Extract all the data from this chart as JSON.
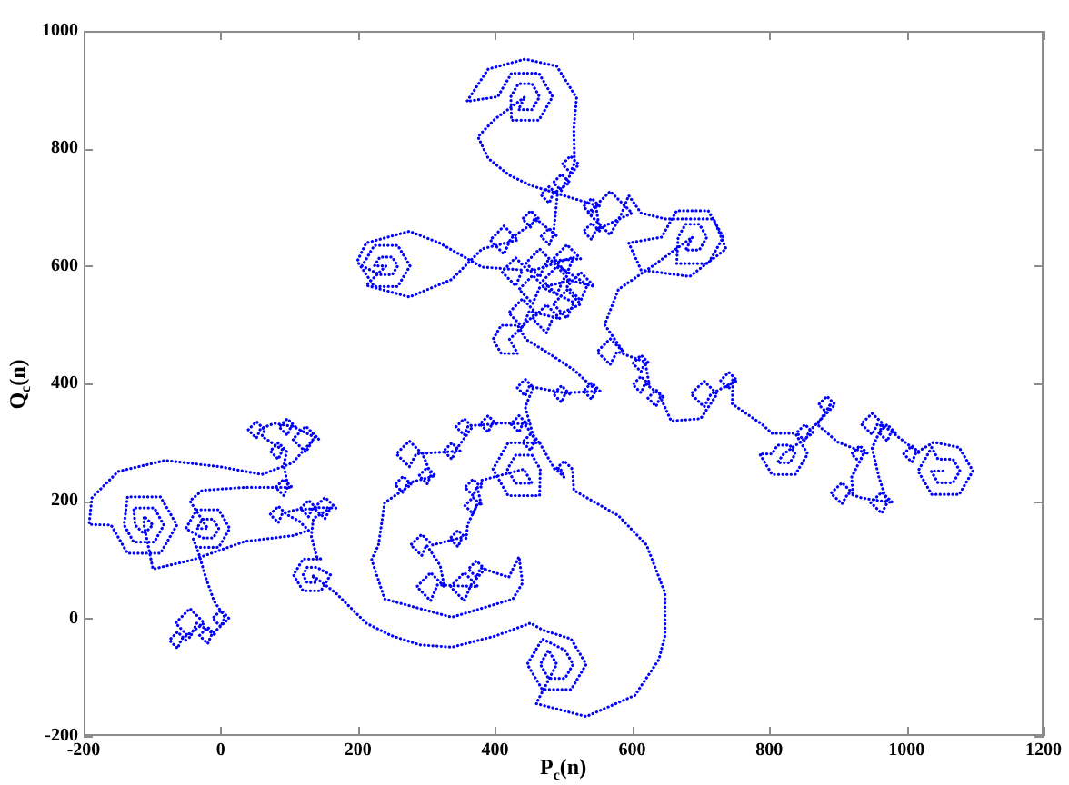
{
  "chart_data": {
    "type": "line",
    "xlabel": "P$_{c}$(n)",
    "ylabel": "Q$_{c}$(n)",
    "color": "#0000ff",
    "line_style": "dotted",
    "marker": "none",
    "grid": false,
    "legend": false,
    "xlim": [
      -200,
      1200
    ],
    "ylim": [
      -200,
      1000
    ],
    "xticks": [
      -200,
      0,
      200,
      400,
      600,
      800,
      1000,
      1200
    ],
    "yticks": [
      -200,
      0,
      200,
      400,
      600,
      800,
      1000
    ],
    "x": [
      -51,
      -63,
      -75,
      -63,
      -57,
      -24,
      -45,
      -66,
      -45,
      -35,
      -7,
      -19,
      -31,
      -19,
      -13,
      12,
      0,
      -12,
      0,
      6,
      -10,
      -22,
      -32,
      -40,
      -35,
      -3,
      13,
      -3,
      -35,
      -51,
      -27,
      -11,
      -3,
      -11,
      -27,
      -35,
      -19,
      -45,
      -27,
      35,
      104,
      92,
      80,
      92,
      98,
      92,
      96,
      84,
      72,
      84,
      90,
      60,
      64,
      52,
      40,
      52,
      58,
      78,
      109,
      97,
      85,
      97,
      103,
      143,
      124,
      105,
      124,
      135,
      105,
      60,
      0,
      -81,
      -150,
      -188,
      -192,
      -160,
      -136,
      -88,
      -64,
      -88,
      -136,
      -141,
      -127,
      -97,
      -83,
      -97,
      -127,
      -125,
      -112,
      -99,
      -112,
      -112,
      -99,
      -40,
      35,
      106,
      128,
      115,
      96,
      84,
      72,
      84,
      90,
      110,
      140,
      128,
      116,
      128,
      134,
      168,
      152,
      136,
      152,
      160,
      135,
      132,
      140,
      146,
      120,
      106,
      120,
      146,
      160,
      140,
      126,
      120,
      126,
      140,
      133,
      168,
      212,
      248,
      290,
      337,
      400,
      452,
      470,
      511,
      533,
      511,
      469,
      447,
      469,
      502,
      514,
      502,
      478,
      466,
      478,
      490,
      460,
      533,
      604,
      639,
      648,
      648,
      621,
      580,
      515,
      513,
      501,
      489,
      501,
      495,
      487,
      465,
      419,
      397,
      419,
      465,
      466,
      454,
      430,
      418,
      430,
      454,
      442,
      380,
      380,
      368,
      356,
      368,
      374,
      380,
      368,
      356,
      368,
      374,
      360,
      358,
      346,
      334,
      346,
      352,
      309,
      293,
      277,
      293,
      300,
      320,
      326,
      306,
      286,
      306,
      316,
      375,
      355,
      335,
      355,
      365,
      385,
      373,
      361,
      373,
      379,
      420,
      435,
      440,
      426,
      337,
      239,
      220,
      230,
      239,
      278,
      266,
      254,
      266,
      272,
      313,
      301,
      289,
      301,
      307,
      294,
      275,
      256,
      275,
      285,
      349,
      337,
      325,
      337,
      343,
      367,
      355,
      343,
      355,
      361,
      402,
      390,
      378,
      390,
      396,
      447,
      435,
      423,
      435,
      441,
      464,
      452,
      440,
      452,
      458,
      444,
      456,
      444,
      432,
      444,
      450,
      509,
      497,
      485,
      497,
      503,
      553,
      541,
      529,
      541,
      547,
      515,
      480,
      445,
      433,
      409,
      397,
      409,
      433,
      421,
      460,
      440,
      420,
      440,
      450,
      495,
      475,
      455,
      475,
      485,
      525,
      505,
      485,
      505,
      515,
      475,
      455,
      435,
      455,
      465,
      510,
      490,
      470,
      490,
      500,
      545,
      525,
      505,
      525,
      535,
      485,
      465,
      445,
      465,
      475,
      525,
      505,
      485,
      505,
      515,
      450,
      430,
      410,
      430,
      440,
      381,
      319,
      275,
      212,
      199,
      224,
      258,
      276,
      258,
      224,
      206,
      232,
      250,
      258,
      250,
      232,
      224,
      241,
      212,
      275,
      337,
      381,
      433,
      413,
      393,
      413,
      423,
      464,
      452,
      440,
      452,
      458,
      491,
      479,
      467,
      479,
      485,
      491,
      479,
      467,
      479,
      485,
      509,
      497,
      485,
      497,
      503,
      522,
      510,
      498,
      510,
      516,
      515,
      519,
      490,
      444,
      390,
      359,
      404,
      424,
      464,
      484,
      464,
      424,
      423,
      434,
      454,
      465,
      454,
      434,
      444,
      400,
      375,
      390,
      420,
      452,
      553,
      541,
      529,
      541,
      547,
      553,
      541,
      529,
      541,
      547,
      600,
      568,
      536,
      568,
      585,
      595,
      613,
      648,
      719,
      737,
      684,
      613,
      595,
      643,
      665,
      711,
      733,
      711,
      665,
      667,
      678,
      698,
      709,
      698,
      678,
      688,
      630,
      580,
      560,
      587,
      568,
      549,
      568,
      578,
      625,
      613,
      601,
      613,
      619,
      625,
      613,
      601,
      613,
      619,
      647,
      635,
      623,
      635,
      641,
      657,
      700,
      724,
      705,
      686,
      705,
      715,
      753,
      741,
      729,
      741,
      747,
      746,
      790,
      804,
      838,
      856,
      838,
      804,
      786,
      804,
      812,
      830,
      838,
      830,
      812,
      821,
      864,
      852,
      840,
      852,
      858,
      896,
      884,
      872,
      884,
      890,
      870,
      900,
      944,
      932,
      920,
      932,
      938,
      920,
      922,
      906,
      890,
      906,
      915,
      935,
      980,
      964,
      948,
      964,
      972,
      960,
      950,
      966,
      950,
      934,
      950,
      958,
      984,
      972,
      960,
      972,
      978,
      1020,
      1008,
      996,
      1008,
      1014,
      1040,
      1077,
      1097,
      1077,
      1037,
      1017,
      1037,
      1046,
      1068,
      1078,
      1068,
      1046,
      1036,
      1057
    ],
    "values": [
      -37,
      -23,
      -37,
      -51,
      -35,
      -8,
      17,
      -8,
      -33,
      -8,
      -29,
      -15,
      -29,
      -43,
      -27,
      0,
      14,
      0,
      -14,
      2,
      30,
      70,
      110,
      135,
      121,
      121,
      153,
      185,
      185,
      153,
      137,
      137,
      153,
      169,
      169,
      153,
      153,
      200,
      218,
      223,
      223,
      237,
      223,
      209,
      225,
      260,
      285,
      299,
      285,
      271,
      287,
      310,
      321,
      335,
      321,
      307,
      323,
      332,
      326,
      340,
      326,
      312,
      328,
      305,
      327,
      305,
      283,
      305,
      265,
      245,
      258,
      269,
      250,
      205,
      160,
      159,
      111,
      111,
      159,
      207,
      207,
      159,
      130,
      130,
      159,
      188,
      188,
      159,
      144,
      159,
      174,
      159,
      84,
      100,
      131,
      141,
      150,
      165,
      177,
      191,
      177,
      163,
      179,
      185,
      187,
      201,
      187,
      173,
      189,
      188,
      206,
      188,
      170,
      188,
      170,
      140,
      105,
      101,
      101,
      74,
      47,
      47,
      74,
      87,
      87,
      74,
      61,
      61,
      74,
      43,
      -8,
      -29,
      -45,
      -49,
      -30,
      -8,
      -20,
      -35,
      -78,
      -121,
      -121,
      -78,
      -35,
      -54,
      -78,
      -102,
      -102,
      -78,
      -54,
      -78,
      -145,
      -167,
      -131,
      -70,
      -29,
      43,
      125,
      175,
      218,
      254,
      268,
      254,
      240,
      256,
      254,
      299,
      299,
      254,
      209,
      209,
      254,
      278,
      278,
      254,
      230,
      230,
      254,
      235,
      223,
      237,
      223,
      209,
      225,
      192,
      206,
      192,
      178,
      194,
      160,
      136,
      150,
      136,
      122,
      138,
      125,
      143,
      125,
      107,
      125,
      90,
      54,
      78,
      54,
      30,
      57,
      54,
      78,
      54,
      30,
      57,
      84,
      98,
      84,
      70,
      86,
      70,
      105,
      60,
      33,
      2,
      33,
      100,
      125,
      197,
      228,
      242,
      228,
      214,
      230,
      243,
      257,
      243,
      229,
      245,
      280,
      302,
      280,
      258,
      280,
      285,
      299,
      285,
      271,
      287,
      326,
      340,
      326,
      312,
      328,
      331,
      345,
      331,
      317,
      333,
      331,
      345,
      331,
      317,
      333,
      300,
      314,
      300,
      286,
      302,
      360,
      393,
      407,
      393,
      379,
      395,
      382,
      396,
      382,
      368,
      384,
      387,
      401,
      387,
      373,
      389,
      423,
      450,
      475,
      499,
      499,
      475,
      451,
      451,
      475,
      520,
      544,
      520,
      496,
      523,
      510,
      534,
      510,
      486,
      513,
      535,
      559,
      535,
      511,
      538,
      560,
      584,
      560,
      536,
      563,
      575,
      599,
      575,
      551,
      578,
      565,
      589,
      565,
      541,
      568,
      605,
      629,
      605,
      581,
      608,
      612,
      636,
      612,
      588,
      615,
      590,
      614,
      590,
      566,
      593,
      598,
      639,
      659,
      639,
      608,
      565,
      565,
      600,
      635,
      635,
      600,
      585,
      585,
      600,
      615,
      615,
      600,
      600,
      567,
      547,
      577,
      629,
      644,
      668,
      644,
      620,
      647,
      680,
      694,
      680,
      666,
      682,
      650,
      664,
      650,
      636,
      652,
      721,
      735,
      721,
      707,
      723,
      742,
      756,
      742,
      728,
      744,
      773,
      787,
      773,
      759,
      775,
      834,
      886,
      940,
      952,
      935,
      880,
      888,
      928,
      928,
      888,
      848,
      848,
      888,
      910,
      910,
      888,
      866,
      866,
      888,
      850,
      820,
      783,
      755,
      737,
      701,
      715,
      701,
      687,
      703,
      659,
      673,
      659,
      645,
      661,
      690,
      727,
      690,
      653,
      690,
      720,
      690,
      680,
      680,
      629,
      582,
      593,
      639,
      649,
      694,
      694,
      649,
      604,
      604,
      649,
      671,
      671,
      649,
      627,
      627,
      649,
      600,
      560,
      500,
      454,
      476,
      454,
      432,
      454,
      434,
      448,
      434,
      420,
      436,
      398,
      412,
      398,
      384,
      400,
      375,
      389,
      375,
      361,
      377,
      336,
      340,
      382,
      404,
      382,
      360,
      382,
      405,
      419,
      405,
      391,
      407,
      365,
      330,
      315,
      315,
      280,
      245,
      245,
      280,
      280,
      295,
      295,
      280,
      265,
      265,
      280,
      316,
      330,
      316,
      302,
      318,
      364,
      378,
      364,
      350,
      366,
      330,
      300,
      280,
      294,
      280,
      266,
      282,
      240,
      213,
      231,
      213,
      195,
      213,
      205,
      197,
      215,
      197,
      179,
      197,
      240,
      290,
      331,
      349,
      331,
      313,
      331,
      316,
      330,
      316,
      302,
      318,
      280,
      294,
      280,
      266,
      282,
      300,
      291,
      251,
      211,
      211,
      251,
      291,
      271,
      271,
      251,
      231,
      231,
      251,
      251
    ]
  }
}
